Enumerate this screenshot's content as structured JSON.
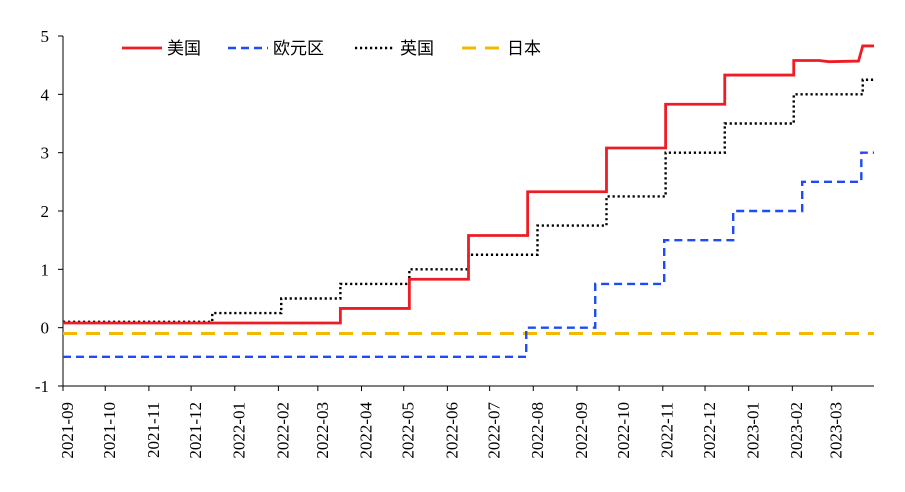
{
  "chart_data": {
    "type": "line",
    "title": "",
    "xlabel": "",
    "ylabel": "",
    "ylim": [
      -1,
      5
    ],
    "yticks": [
      -1,
      0,
      1,
      2,
      3,
      4,
      5
    ],
    "xlim": [
      "2021-09-01",
      "2023-03-31"
    ],
    "xtick_labels": [
      "2021-09",
      "2021-10",
      "2021-11",
      "2021-12",
      "2022-01",
      "2022-02",
      "2022-03",
      "2022-04",
      "2022-05",
      "2022-06",
      "2022-07",
      "2022-08",
      "2022-09",
      "2022-10",
      "2022-11",
      "2022-12",
      "2023-01",
      "2023-02",
      "2023-03"
    ],
    "grid": false,
    "legend_position": "top",
    "series": [
      {
        "name": "美国",
        "color": "#ee1c24",
        "style": "solid",
        "points": [
          [
            "2021-09-01",
            0.08
          ],
          [
            "2022-03-17",
            0.08
          ],
          [
            "2022-03-17",
            0.33
          ],
          [
            "2022-05-05",
            0.33
          ],
          [
            "2022-05-05",
            0.83
          ],
          [
            "2022-06-16",
            0.83
          ],
          [
            "2022-06-16",
            1.58
          ],
          [
            "2022-07-28",
            1.58
          ],
          [
            "2022-07-28",
            2.33
          ],
          [
            "2022-09-22",
            2.33
          ],
          [
            "2022-09-22",
            3.08
          ],
          [
            "2022-11-03",
            3.08
          ],
          [
            "2022-11-03",
            3.83
          ],
          [
            "2022-12-15",
            3.83
          ],
          [
            "2022-12-15",
            4.33
          ],
          [
            "2023-02-02",
            4.33
          ],
          [
            "2023-02-02",
            4.58
          ],
          [
            "2023-02-20",
            4.58
          ],
          [
            "2023-02-27",
            4.56
          ],
          [
            "2023-03-20",
            4.57
          ],
          [
            "2023-03-23",
            4.83
          ],
          [
            "2023-03-31",
            4.83
          ]
        ]
      },
      {
        "name": "欧元区",
        "color": "#1f4cf2",
        "style": "dashed",
        "points": [
          [
            "2021-09-01",
            -0.5
          ],
          [
            "2022-07-27",
            -0.5
          ],
          [
            "2022-07-27",
            0.0
          ],
          [
            "2022-09-14",
            0.0
          ],
          [
            "2022-09-14",
            0.75
          ],
          [
            "2022-11-02",
            0.75
          ],
          [
            "2022-11-02",
            1.5
          ],
          [
            "2022-12-21",
            1.5
          ],
          [
            "2022-12-21",
            2.0
          ],
          [
            "2023-02-08",
            2.0
          ],
          [
            "2023-02-08",
            2.5
          ],
          [
            "2023-03-22",
            2.5
          ],
          [
            "2023-03-22",
            3.0
          ],
          [
            "2023-03-31",
            3.0
          ]
        ]
      },
      {
        "name": "英国",
        "color": "#000000",
        "style": "dotted",
        "points": [
          [
            "2021-09-01",
            0.1
          ],
          [
            "2021-12-16",
            0.1
          ],
          [
            "2021-12-16",
            0.25
          ],
          [
            "2022-02-03",
            0.25
          ],
          [
            "2022-02-03",
            0.5
          ],
          [
            "2022-03-17",
            0.5
          ],
          [
            "2022-03-17",
            0.75
          ],
          [
            "2022-05-05",
            0.75
          ],
          [
            "2022-05-05",
            1.0
          ],
          [
            "2022-06-16",
            1.0
          ],
          [
            "2022-06-16",
            1.25
          ],
          [
            "2022-08-04",
            1.25
          ],
          [
            "2022-08-04",
            1.75
          ],
          [
            "2022-09-22",
            1.75
          ],
          [
            "2022-09-22",
            2.25
          ],
          [
            "2022-11-03",
            2.25
          ],
          [
            "2022-11-03",
            3.0
          ],
          [
            "2022-12-15",
            3.0
          ],
          [
            "2022-12-15",
            3.5
          ],
          [
            "2023-02-02",
            3.5
          ],
          [
            "2023-02-02",
            4.0
          ],
          [
            "2023-03-23",
            4.0
          ],
          [
            "2023-03-23",
            4.25
          ],
          [
            "2023-03-31",
            4.25
          ]
        ]
      },
      {
        "name": "日本",
        "color": "#f5b800",
        "style": "longdash",
        "points": [
          [
            "2021-09-01",
            -0.1
          ],
          [
            "2023-03-31",
            -0.1
          ]
        ]
      }
    ]
  }
}
